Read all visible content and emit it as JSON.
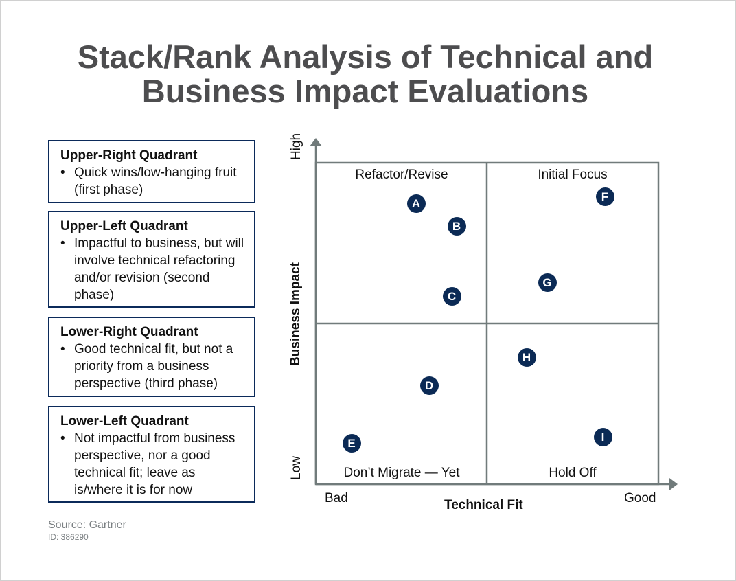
{
  "title": {
    "line1": "Stack/Rank Analysis of Technical and",
    "line2": "Business Impact Evaluations"
  },
  "legend_boxes": [
    {
      "heading": "Upper-Right Quadrant",
      "bullet": "Quick wins/low-hanging fruit (first phase)"
    },
    {
      "heading": "Upper-Left Quadrant",
      "bullet": "Impactful to business, but will involve technical refactoring and/or revision (second phase)"
    },
    {
      "heading": "Lower-Right Quadrant",
      "bullet": "Good technical fit, but not a priority from a business perspective (third phase)"
    },
    {
      "heading": "Lower-Left Quadrant",
      "bullet": "Not impactful from business perspective, nor a good technical fit; leave as is/where it is for now"
    }
  ],
  "chart": {
    "x_axis": {
      "label": "Technical Fit",
      "low": "Bad",
      "high": "Good"
    },
    "y_axis": {
      "label": "Business Impact",
      "low": "Low",
      "high": "High"
    },
    "quadrants": {
      "upper_left": "Refactor/Revise",
      "upper_right": "Initial Focus",
      "lower_left": "Don’t Migrate — Yet",
      "lower_right": "Hold Off"
    },
    "markers": [
      "A",
      "B",
      "C",
      "D",
      "E",
      "F",
      "G",
      "H",
      "I"
    ],
    "colors": {
      "marker": "#0b2a55",
      "axis": "#717b7b",
      "box_border": "#0b2a5a",
      "title": "#4d4d4f"
    }
  },
  "source": "Source: Gartner",
  "id": "ID: 386290"
}
